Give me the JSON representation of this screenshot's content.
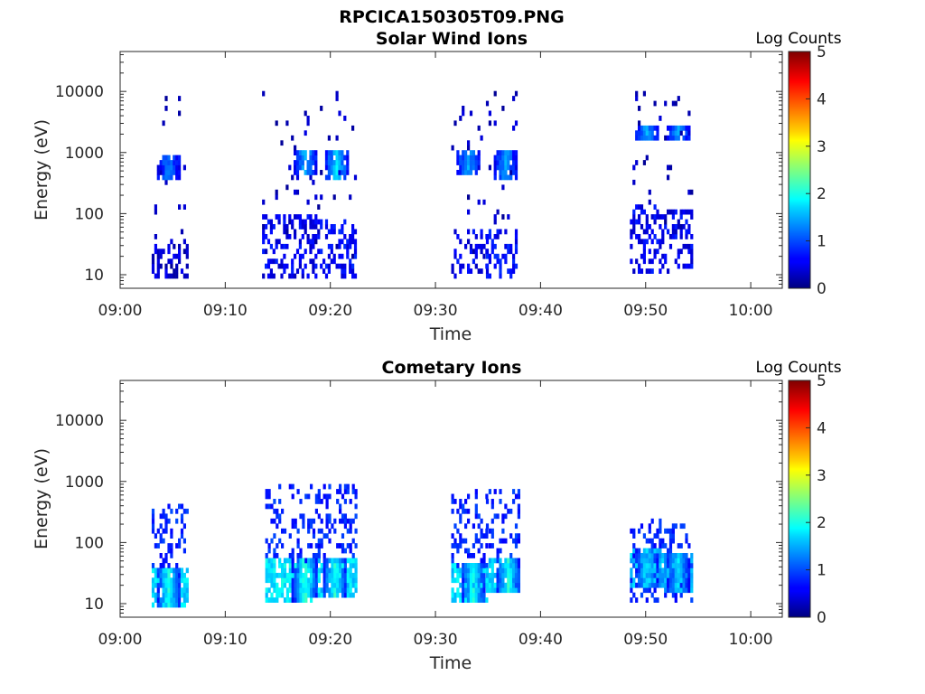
{
  "figure": {
    "title": "RPCICA150305T09.PNG"
  },
  "colors": {
    "colormap": "jet",
    "axes": "#262626",
    "background": "#ffffff"
  },
  "chart_data": [
    {
      "type": "heatmap",
      "title": "Solar Wind Ions",
      "xlabel": "Time",
      "ylabel": "Energy (eV)",
      "y_scale": "log",
      "ylim": [
        6,
        45000
      ],
      "xlim": [
        "09:00",
        "10:03"
      ],
      "x_ticks": [
        "09:00",
        "09:10",
        "09:20",
        "09:30",
        "09:40",
        "09:50",
        "10:00"
      ],
      "y_ticks": [
        10,
        100,
        1000,
        10000
      ],
      "y_tick_labels": [
        "10",
        "100",
        "1000",
        "10000"
      ],
      "colorbar": {
        "label": "Log Counts",
        "range": [
          0,
          5
        ],
        "ticks": [
          "0",
          "1",
          "2",
          "3",
          "4",
          "5"
        ]
      },
      "bursts": [
        {
          "start_min": 3.0,
          "end_min": 6.5,
          "core": {
            "t_min": 4.5,
            "e_min": 350,
            "e_max": 900,
            "log_counts": 1.0
          },
          "low": {
            "e_min": 8,
            "e_max": 40,
            "log_counts": 0.1
          }
        },
        {
          "start_min": 13.5,
          "end_min": 19.0,
          "core": {
            "t_min": 17.5,
            "e_min": 400,
            "e_max": 1100,
            "log_counts": 1.3
          },
          "low": {
            "e_min": 8,
            "e_max": 100,
            "log_counts": 0.3
          }
        },
        {
          "start_min": 19.0,
          "end_min": 22.5,
          "core": {
            "t_min": 20.5,
            "e_min": 350,
            "e_max": 1100,
            "log_counts": 1.5
          },
          "low": {
            "e_min": 9,
            "e_max": 80,
            "log_counts": 0.4
          }
        },
        {
          "start_min": 31.5,
          "end_min": 34.8,
          "core": {
            "t_min": 33.0,
            "e_min": 400,
            "e_max": 1100,
            "log_counts": 1.2
          },
          "low": {
            "e_min": 8,
            "e_max": 60,
            "log_counts": 0.3
          }
        },
        {
          "start_min": 34.8,
          "end_min": 37.8,
          "core": {
            "t_min": 36.5,
            "e_min": 350,
            "e_max": 1000,
            "log_counts": 1.2
          },
          "low": {
            "e_min": 9,
            "e_max": 60,
            "log_counts": 0.4
          }
        },
        {
          "start_min": 48.5,
          "end_min": 51.5,
          "core": {
            "t_min": 50.0,
            "e_min": 1600,
            "e_max": 2800,
            "log_counts": 1.2
          },
          "low": {
            "e_min": 10,
            "e_max": 150,
            "log_counts": 0.3
          }
        },
        {
          "start_min": 51.5,
          "end_min": 54.5,
          "core": {
            "t_min": 53.0,
            "e_min": 1600,
            "e_max": 2800,
            "log_counts": 1.2
          },
          "low": {
            "e_min": 10,
            "e_max": 120,
            "log_counts": 0.3
          }
        }
      ]
    },
    {
      "type": "heatmap",
      "title": "Cometary Ions",
      "xlabel": "Time",
      "ylabel": "Energy (eV)",
      "y_scale": "log",
      "ylim": [
        6,
        45000
      ],
      "xlim": [
        "09:00",
        "10:03"
      ],
      "x_ticks": [
        "09:00",
        "09:10",
        "09:20",
        "09:30",
        "09:40",
        "09:50",
        "10:00"
      ],
      "y_ticks": [
        10,
        100,
        1000,
        10000
      ],
      "y_tick_labels": [
        "10",
        "100",
        "1000",
        "10000"
      ],
      "colorbar": {
        "label": "Log Counts",
        "range": [
          0,
          5
        ],
        "ticks": [
          "0",
          "1",
          "2",
          "3",
          "4",
          "5"
        ]
      },
      "bursts": [
        {
          "start_min": 3.0,
          "end_min": 6.3,
          "core": {
            "t_min": 4.5,
            "e_min": 8,
            "e_max": 40,
            "log_counts": 1.8
          },
          "spread": {
            "e_min": 30,
            "e_max": 400,
            "log_counts": 0.6
          }
        },
        {
          "start_min": 13.8,
          "end_min": 18.8,
          "core": {
            "t_min": 17.5,
            "e_min": 10,
            "e_max": 60,
            "log_counts": 1.9
          },
          "spread": {
            "e_min": 40,
            "e_max": 900,
            "log_counts": 0.6
          }
        },
        {
          "start_min": 18.8,
          "end_min": 22.5,
          "core": {
            "t_min": 20.3,
            "e_min": 12,
            "e_max": 60,
            "log_counts": 1.8
          },
          "spread": {
            "e_min": 40,
            "e_max": 900,
            "log_counts": 0.6
          }
        },
        {
          "start_min": 31.5,
          "end_min": 34.8,
          "core": {
            "t_min": 33.5,
            "e_min": 10,
            "e_max": 50,
            "log_counts": 1.8
          },
          "spread": {
            "e_min": 30,
            "e_max": 700,
            "log_counts": 0.6
          }
        },
        {
          "start_min": 34.8,
          "end_min": 38.0,
          "core": {
            "t_min": 36.8,
            "e_min": 15,
            "e_max": 60,
            "log_counts": 1.8
          },
          "spread": {
            "e_min": 30,
            "e_max": 700,
            "log_counts": 0.6
          }
        },
        {
          "start_min": 48.5,
          "end_min": 51.5,
          "core": {
            "t_min": 50.0,
            "e_min": 20,
            "e_max": 80,
            "log_counts": 1.6
          },
          "spread": {
            "e_min": 10,
            "e_max": 250,
            "log_counts": 0.6
          }
        },
        {
          "start_min": 51.5,
          "end_min": 54.5,
          "core": {
            "t_min": 53.0,
            "e_min": 15,
            "e_max": 70,
            "log_counts": 1.5
          },
          "spread": {
            "e_min": 10,
            "e_max": 200,
            "log_counts": 0.6
          }
        }
      ]
    }
  ]
}
